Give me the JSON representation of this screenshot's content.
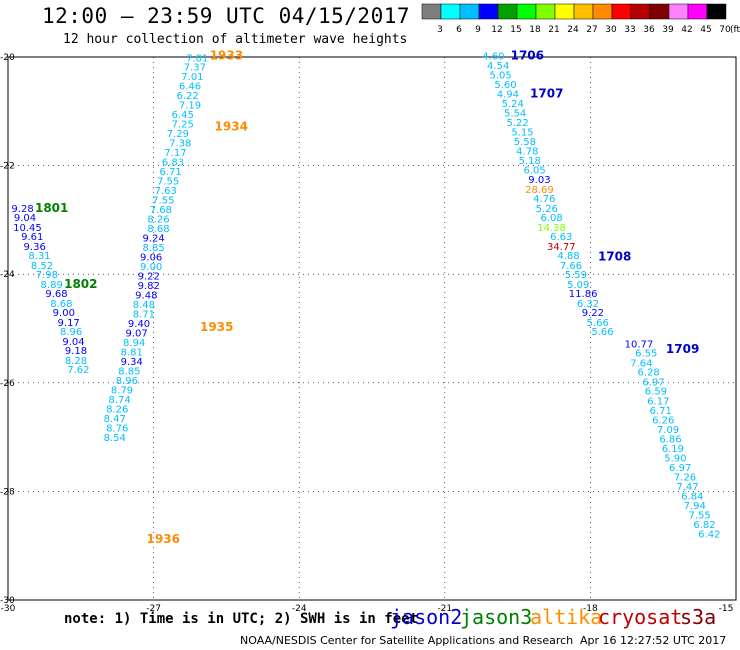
{
  "header": {
    "title": "12:00 — 23:59 UTC 04/15/2017",
    "subtitle": "12 hour collection of altimeter wave heights"
  },
  "colorbar": {
    "labels": [
      "3",
      "6",
      "9",
      "12",
      "15",
      "18",
      "21",
      "24",
      "27",
      "30",
      "33",
      "36",
      "39",
      "42",
      "45",
      "70"
    ],
    "unit": "(ft)",
    "colors": [
      "#7f7f7f",
      "#00ffff",
      "#00bfff",
      "#0000ff",
      "#00a000",
      "#00ff00",
      "#7fff00",
      "#ffff00",
      "#ffbf00",
      "#ff8c00",
      "#ff0000",
      "#b40000",
      "#800000",
      "#ff80ff",
      "#ff00ff",
      "#000000"
    ]
  },
  "map": {
    "lon_ticks": [
      "-30",
      "-27",
      "-24",
      "-21",
      "-18",
      "-15"
    ],
    "lat_ticks": [
      "-20",
      "-22",
      "-24",
      "-26",
      "-28",
      "-30"
    ],
    "lon_range": [
      -30,
      -15
    ],
    "lat_range": [
      -20,
      -30
    ],
    "satellite_colors": {
      "jason2": "#0000cc",
      "jason3": "#008000",
      "altika": "#ff8c00",
      "cryosat": "#c00000",
      "s3a": "#800000"
    }
  },
  "tracks": [
    {
      "satellite": "altika",
      "labels": [
        {
          "text": "1933",
          "lon": -25.5,
          "lat": -20.05
        },
        {
          "text": "1934",
          "lon": -25.4,
          "lat": -21.35
        },
        {
          "text": "1935",
          "lon": -25.7,
          "lat": -25.05
        },
        {
          "text": "1936",
          "lon": -26.8,
          "lat": -28.95
        }
      ],
      "points": [
        {
          "v": "7.81",
          "lon": -26.1,
          "lat": -20.08,
          "c": "#00bfff"
        },
        {
          "v": "7.37",
          "lon": -26.15,
          "lat": -20.25,
          "c": "#00bfff"
        },
        {
          "v": "7.01",
          "lon": -26.2,
          "lat": -20.42,
          "c": "#00bfff"
        },
        {
          "v": "6.46",
          "lon": -26.25,
          "lat": -20.6,
          "c": "#00bfff"
        },
        {
          "v": "6.22",
          "lon": -26.3,
          "lat": -20.77,
          "c": "#00bfff"
        },
        {
          "v": "7.19",
          "lon": -26.25,
          "lat": -20.95,
          "c": "#00bfff"
        },
        {
          "v": "6.45",
          "lon": -26.4,
          "lat": -21.12,
          "c": "#00bfff"
        },
        {
          "v": "7.25",
          "lon": -26.4,
          "lat": -21.3,
          "c": "#00bfff"
        },
        {
          "v": "7.29",
          "lon": -26.5,
          "lat": -21.47,
          "c": "#00bfff"
        },
        {
          "v": "7.38",
          "lon": -26.45,
          "lat": -21.65,
          "c": "#00bfff"
        },
        {
          "v": "7.17",
          "lon": -26.55,
          "lat": -21.82,
          "c": "#00bfff"
        },
        {
          "v": "6.83",
          "lon": -26.6,
          "lat": -22.0,
          "c": "#00bfff"
        },
        {
          "v": "6.71",
          "lon": -26.65,
          "lat": -22.17,
          "c": "#00bfff"
        },
        {
          "v": "7.55",
          "lon": -26.7,
          "lat": -22.35,
          "c": "#00bfff"
        },
        {
          "v": "7.63",
          "lon": -26.75,
          "lat": -22.52,
          "c": "#00bfff"
        },
        {
          "v": "7.55",
          "lon": -26.8,
          "lat": -22.7,
          "c": "#00bfff"
        },
        {
          "v": "7.68",
          "lon": -26.85,
          "lat": -22.87,
          "c": "#00bfff"
        },
        {
          "v": "8.26",
          "lon": -26.9,
          "lat": -23.05,
          "c": "#00bfff"
        },
        {
          "v": "8.68",
          "lon": -26.9,
          "lat": -23.22,
          "c": "#00bfff"
        },
        {
          "v": "9.24",
          "lon": -27.0,
          "lat": -23.4,
          "c": "#0000ff"
        },
        {
          "v": "8.85",
          "lon": -27.0,
          "lat": -23.57,
          "c": "#00bfff"
        },
        {
          "v": "9.06",
          "lon": -27.05,
          "lat": -23.75,
          "c": "#0000ff"
        },
        {
          "v": "9.00",
          "lon": -27.05,
          "lat": -23.92,
          "c": "#00bfff"
        },
        {
          "v": "9.22",
          "lon": -27.1,
          "lat": -24.1,
          "c": "#0000ff"
        },
        {
          "v": "9.82",
          "lon": -27.1,
          "lat": -24.27,
          "c": "#0000ff"
        },
        {
          "v": "9.48",
          "lon": -27.15,
          "lat": -24.45,
          "c": "#0000ff"
        },
        {
          "v": "8.48",
          "lon": -27.2,
          "lat": -24.62,
          "c": "#00bfff"
        },
        {
          "v": "8.71",
          "lon": -27.2,
          "lat": -24.8,
          "c": "#00bfff"
        },
        {
          "v": "9.40",
          "lon": -27.3,
          "lat": -24.97,
          "c": "#0000ff"
        },
        {
          "v": "9.07",
          "lon": -27.35,
          "lat": -25.15,
          "c": "#0000ff"
        },
        {
          "v": "8.94",
          "lon": -27.4,
          "lat": -25.32,
          "c": "#00bfff"
        },
        {
          "v": "8.81",
          "lon": -27.45,
          "lat": -25.5,
          "c": "#00bfff"
        },
        {
          "v": "9.34",
          "lon": -27.45,
          "lat": -25.67,
          "c": "#0000ff"
        },
        {
          "v": "8.85",
          "lon": -27.5,
          "lat": -25.85,
          "c": "#00bfff"
        },
        {
          "v": "8.96",
          "lon": -27.55,
          "lat": -26.02,
          "c": "#00bfff"
        },
        {
          "v": "8.79",
          "lon": -27.65,
          "lat": -26.2,
          "c": "#00bfff"
        },
        {
          "v": "8.74",
          "lon": -27.7,
          "lat": -26.37,
          "c": "#00bfff"
        },
        {
          "v": "8.26",
          "lon": -27.75,
          "lat": -26.55,
          "c": "#00bfff"
        },
        {
          "v": "8.47",
          "lon": -27.8,
          "lat": -26.72,
          "c": "#00bfff"
        },
        {
          "v": "8.76",
          "lon": -27.75,
          "lat": -26.9,
          "c": "#00bfff"
        },
        {
          "v": "8.54",
          "lon": -27.8,
          "lat": -27.07,
          "c": "#00bfff"
        }
      ]
    },
    {
      "satellite": "jason3",
      "labels": [
        {
          "text": "1801",
          "lon": -29.1,
          "lat": -22.85
        },
        {
          "text": "1802",
          "lon": -28.5,
          "lat": -24.25
        }
      ],
      "points": [
        {
          "v": "9.28",
          "lon": -29.7,
          "lat": -22.85,
          "c": "#0000ff"
        },
        {
          "v": "9.04",
          "lon": -29.65,
          "lat": -23.02,
          "c": "#0000ff"
        },
        {
          "v": "10.45",
          "lon": -29.6,
          "lat": -23.2,
          "c": "#0000ff"
        },
        {
          "v": "9.61",
          "lon": -29.5,
          "lat": -23.37,
          "c": "#0000ff"
        },
        {
          "v": "9.36",
          "lon": -29.45,
          "lat": -23.55,
          "c": "#0000ff"
        },
        {
          "v": "8.31",
          "lon": -29.35,
          "lat": -23.72,
          "c": "#00bfff"
        },
        {
          "v": "8.52",
          "lon": -29.3,
          "lat": -23.9,
          "c": "#00bfff"
        },
        {
          "v": "7.98",
          "lon": -29.2,
          "lat": -24.07,
          "c": "#00bfff"
        },
        {
          "v": "8.89",
          "lon": -29.1,
          "lat": -24.25,
          "c": "#00bfff"
        },
        {
          "v": "9.68",
          "lon": -29.0,
          "lat": -24.42,
          "c": "#0000ff"
        },
        {
          "v": "8.68",
          "lon": -28.9,
          "lat": -24.6,
          "c": "#00bfff"
        },
        {
          "v": "9.00",
          "lon": -28.85,
          "lat": -24.77,
          "c": "#0000ff"
        },
        {
          "v": "9.17",
          "lon": -28.75,
          "lat": -24.95,
          "c": "#0000ff"
        },
        {
          "v": "8.96",
          "lon": -28.7,
          "lat": -25.12,
          "c": "#00bfff"
        },
        {
          "v": "9.04",
          "lon": -28.65,
          "lat": -25.3,
          "c": "#0000ff"
        },
        {
          "v": "9.18",
          "lon": -28.6,
          "lat": -25.47,
          "c": "#0000ff"
        },
        {
          "v": "8.28",
          "lon": -28.6,
          "lat": -25.65,
          "c": "#00bfff"
        },
        {
          "v": "7.62",
          "lon": -28.55,
          "lat": -25.82,
          "c": "#00bfff"
        }
      ]
    },
    {
      "satellite": "jason2",
      "labels": [
        {
          "text": "1706",
          "lon": -19.3,
          "lat": -20.05
        },
        {
          "text": "1707",
          "lon": -18.9,
          "lat": -20.75
        },
        {
          "text": "1708",
          "lon": -17.5,
          "lat": -23.75
        },
        {
          "text": "1709",
          "lon": -16.1,
          "lat": -25.45
        }
      ],
      "points": [
        {
          "v": "4.60",
          "lon": -20.0,
          "lat": -20.05,
          "c": "#00bfff"
        },
        {
          "v": "4.54",
          "lon": -19.9,
          "lat": -20.22,
          "c": "#00bfff"
        },
        {
          "v": "5.05",
          "lon": -19.85,
          "lat": -20.4,
          "c": "#00bfff"
        },
        {
          "v": "5.60",
          "lon": -19.75,
          "lat": -20.57,
          "c": "#00bfff"
        },
        {
          "v": "4.94",
          "lon": -19.7,
          "lat": -20.75,
          "c": "#00bfff"
        },
        {
          "v": "5.24",
          "lon": -19.6,
          "lat": -20.92,
          "c": "#00bfff"
        },
        {
          "v": "5.54",
          "lon": -19.55,
          "lat": -21.1,
          "c": "#00bfff"
        },
        {
          "v": "5.22",
          "lon": -19.5,
          "lat": -21.27,
          "c": "#00bfff"
        },
        {
          "v": "5.15",
          "lon": -19.4,
          "lat": -21.45,
          "c": "#00bfff"
        },
        {
          "v": "5.58",
          "lon": -19.35,
          "lat": -21.62,
          "c": "#00bfff"
        },
        {
          "v": "4.78",
          "lon": -19.3,
          "lat": -21.8,
          "c": "#00bfff"
        },
        {
          "v": "5.18",
          "lon": -19.25,
          "lat": -21.97,
          "c": "#00bfff"
        },
        {
          "v": "6.05",
          "lon": -19.15,
          "lat": -22.15,
          "c": "#00bfff"
        },
        {
          "v": "9.03",
          "lon": -19.05,
          "lat": -22.32,
          "c": "#0000ff"
        },
        {
          "v": "28.69",
          "lon": -19.05,
          "lat": -22.5,
          "c": "#ff8c00"
        },
        {
          "v": "4.76",
          "lon": -18.95,
          "lat": -22.67,
          "c": "#00bfff"
        },
        {
          "v": "5.26",
          "lon": -18.9,
          "lat": -22.85,
          "c": "#00bfff"
        },
        {
          "v": "6.08",
          "lon": -18.8,
          "lat": -23.02,
          "c": "#00bfff"
        },
        {
          "v": "14.38",
          "lon": -18.8,
          "lat": -23.2,
          "c": "#7fff00"
        },
        {
          "v": "6.63",
          "lon": -18.6,
          "lat": -23.37,
          "c": "#00bfff"
        },
        {
          "v": "34.77",
          "lon": -18.6,
          "lat": -23.55,
          "c": "#b40000"
        },
        {
          "v": "4.88",
          "lon": -18.45,
          "lat": -23.72,
          "c": "#00bfff"
        },
        {
          "v": "7.66",
          "lon": -18.4,
          "lat": -23.9,
          "c": "#00bfff"
        },
        {
          "v": "5.59",
          "lon": -18.3,
          "lat": -24.07,
          "c": "#00bfff"
        },
        {
          "v": "5.09",
          "lon": -18.25,
          "lat": -24.25,
          "c": "#00bfff"
        },
        {
          "v": "11.86",
          "lon": -18.15,
          "lat": -24.42,
          "c": "#0000ff"
        },
        {
          "v": "6.32",
          "lon": -18.05,
          "lat": -24.6,
          "c": "#00bfff"
        },
        {
          "v": "9.22",
          "lon": -17.95,
          "lat": -24.77,
          "c": "#0000ff"
        },
        {
          "v": "5.66",
          "lon": -17.85,
          "lat": -24.95,
          "c": "#00bfff"
        },
        {
          "v": "5.66",
          "lon": -17.75,
          "lat": -25.12,
          "c": "#00bfff"
        },
        {
          "v": "10.77",
          "lon": -17.0,
          "lat": -25.35,
          "c": "#0000ff"
        },
        {
          "v": "6.55",
          "lon": -16.85,
          "lat": -25.52,
          "c": "#00bfff"
        },
        {
          "v": "7.64",
          "lon": -16.95,
          "lat": -25.7,
          "c": "#00bfff"
        },
        {
          "v": "6.28",
          "lon": -16.8,
          "lat": -25.87,
          "c": "#00bfff"
        },
        {
          "v": "6.97",
          "lon": -16.7,
          "lat": -26.05,
          "c": "#00bfff"
        },
        {
          "v": "6.59",
          "lon": -16.65,
          "lat": -26.22,
          "c": "#00bfff"
        },
        {
          "v": "6.17",
          "lon": -16.6,
          "lat": -26.4,
          "c": "#00bfff"
        },
        {
          "v": "6.71",
          "lon": -16.55,
          "lat": -26.57,
          "c": "#00bfff"
        },
        {
          "v": "6.26",
          "lon": -16.5,
          "lat": -26.75,
          "c": "#00bfff"
        },
        {
          "v": "7.09",
          "lon": -16.4,
          "lat": -26.92,
          "c": "#00bfff"
        },
        {
          "v": "6.86",
          "lon": -16.35,
          "lat": -27.1,
          "c": "#00bfff"
        },
        {
          "v": "6.19",
          "lon": -16.3,
          "lat": -27.27,
          "c": "#00bfff"
        },
        {
          "v": "5.90",
          "lon": -16.25,
          "lat": -27.45,
          "c": "#00bfff"
        },
        {
          "v": "6.97",
          "lon": -16.15,
          "lat": -27.62,
          "c": "#00bfff"
        },
        {
          "v": "7.26",
          "lon": -16.05,
          "lat": -27.8,
          "c": "#00bfff"
        },
        {
          "v": "7.47",
          "lon": -16.0,
          "lat": -27.97,
          "c": "#00bfff"
        },
        {
          "v": "6.84",
          "lon": -15.9,
          "lat": -28.15,
          "c": "#00bfff"
        },
        {
          "v": "7.94",
          "lon": -15.85,
          "lat": -28.32,
          "c": "#00bfff"
        },
        {
          "v": "7.55",
          "lon": -15.75,
          "lat": -28.5,
          "c": "#00bfff"
        },
        {
          "v": "6.82",
          "lon": -15.65,
          "lat": -28.67,
          "c": "#00bfff"
        },
        {
          "v": "6.42",
          "lon": -15.55,
          "lat": -28.85,
          "c": "#00bfff"
        }
      ]
    }
  ],
  "footer": {
    "note": "note: 1) Time is in UTC; 2) SWH is in feet",
    "legend": [
      {
        "name": "jason2",
        "color": "#0000cc"
      },
      {
        "name": "jason3",
        "color": "#008000"
      },
      {
        "name": "altika",
        "color": "#ff8c00"
      },
      {
        "name": "cryosat",
        "color": "#c00000"
      },
      {
        "name": "s3a",
        "color": "#800000"
      }
    ],
    "credit": "NOAA/NESDIS Center for Satellite Applications and Research",
    "timestamp": "Apr 16 12:27:52 UTC 2017"
  }
}
